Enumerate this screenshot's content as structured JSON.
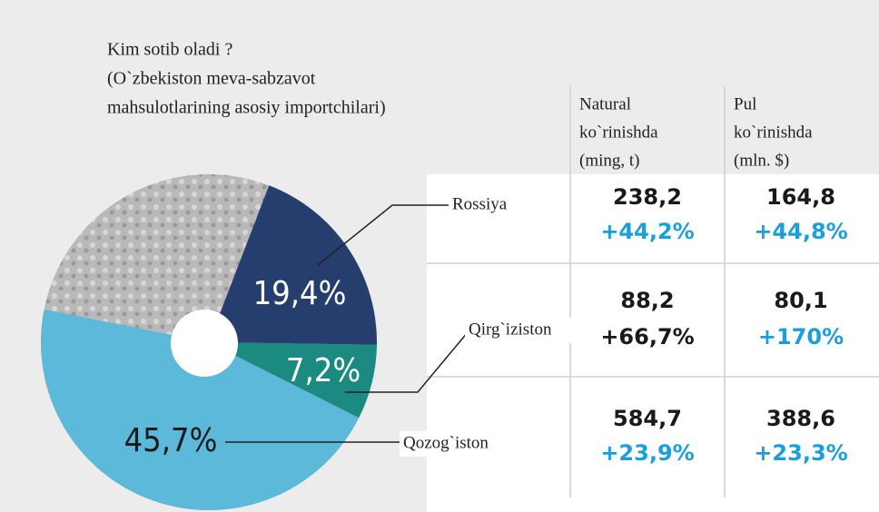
{
  "chart_data": {
    "type": "pie",
    "title": [
      "Kim sotib oladi ?",
      "(O`zbekiston meva-sabzavot",
      "mahsulotlarining asosiy importchilari)"
    ],
    "categories": [
      "Rossiya",
      "Qirg`iziston",
      "Qozog`iston"
    ],
    "values": [
      19.4,
      7.2,
      45.7
    ],
    "value_labels": [
      "19,4%",
      "7,2%",
      "45,7%"
    ],
    "colors": [
      "#253e6d",
      "#1b8a80",
      "#5cb9d9"
    ],
    "label_colors": [
      "#ffffff",
      "#ffffff",
      "#1a1a1a"
    ]
  },
  "table": {
    "headers": [
      [
        "Natural",
        "ko`rinishda",
        "(ming, t)"
      ],
      [
        "Pul",
        "ko`rinishda",
        "(mln. $)"
      ]
    ],
    "rows": [
      [
        {
          "value": "238,2",
          "change": "+44,2%",
          "change_color": "#1b9fdc"
        },
        {
          "value": "164,8",
          "change": "+44,8%",
          "change_color": "#1b9fdc"
        }
      ],
      [
        {
          "value": "88,2",
          "change": "+66,7%",
          "change_color": "#1a1a1a"
        },
        {
          "value": "80,1",
          "change": "+170%",
          "change_color": "#1b9fdc"
        }
      ],
      [
        {
          "value": "584,7",
          "change": "+23,9%",
          "change_color": "#1b9fdc"
        },
        {
          "value": "388,6",
          "change": "+23,3%",
          "change_color": "#1b9fdc"
        }
      ]
    ]
  }
}
